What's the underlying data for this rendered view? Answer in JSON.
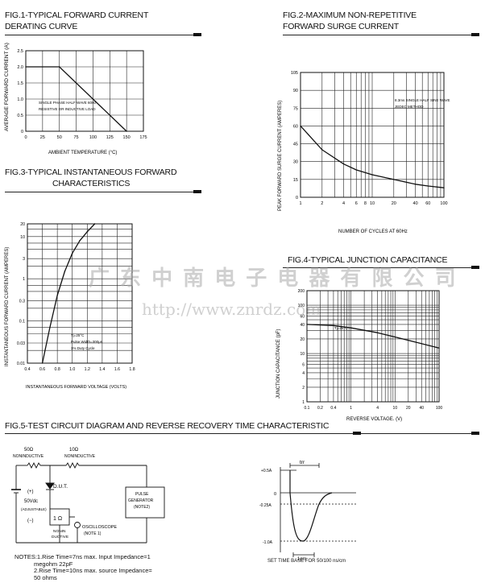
{
  "colors": {
    "ink": "#111111",
    "grid": "#222222",
    "watermark": "#b0b0b0"
  },
  "watermark": {
    "cn": "广 东 中 南 电 子 电 器 有 限 公 司",
    "url": "http://www.znrdz.com"
  },
  "fig1": {
    "title1": "FIG.1-TYPICAL FORWARD CURRENT",
    "title2": "DERATING CURVE",
    "ylabel": "AVERAGE FORWARD CURRENT (A)",
    "xlabel": "AMBIENT TEMPERATURE (°C)",
    "note1": "SINGLE PHASE HALF WAVE 60Hz",
    "note2": "RESISTIVE OR INDUCTIVE LOAD",
    "xticks": [
      "0",
      "25",
      "50",
      "75",
      "100",
      "125",
      "150",
      "175"
    ],
    "yticks": [
      "0",
      "0.5",
      "1.0",
      "1.5",
      "2.0",
      "2.5"
    ],
    "chart_data": {
      "type": "line",
      "x": [
        0,
        50,
        150
      ],
      "y": [
        2.0,
        2.0,
        0
      ],
      "xlim": [
        0,
        175
      ],
      "ylim": [
        0,
        2.5
      ]
    }
  },
  "fig2": {
    "title1": "FIG.2-MAXIMUM NON-REPETITIVE",
    "title2": "FORWARD SURGE CURRENT",
    "ylabel": "PEAK FORWARD SURGE CURRENT (AMPERES)",
    "xlabel": "NUMBER OF CYCLES AT 60Hz",
    "note1": "8.3ms SINGLE HALF SINE WAVE",
    "note2": "JEDEC METHOD",
    "xticks": [
      "1",
      "2",
      "4",
      "6",
      "8",
      "10",
      "20",
      "40",
      "60",
      "100"
    ],
    "yticks": [
      "0",
      "15",
      "30",
      "45",
      "60",
      "75",
      "90",
      "105"
    ],
    "chart_data": {
      "type": "line",
      "xscale": "log",
      "x": [
        1,
        2,
        4,
        6,
        10,
        20,
        40,
        60,
        100
      ],
      "y": [
        60,
        40,
        28,
        23,
        19,
        15,
        11,
        9.5,
        8
      ],
      "xlim": [
        1,
        100
      ],
      "ylim": [
        0,
        105
      ]
    }
  },
  "fig3": {
    "title1": "FIG.3-TYPICAL INSTANTANEOUS FORWARD",
    "title2": "CHARACTERISTICS",
    "ylabel": "INSTANTANEOUS FORWARD CURRENT (AMPERES)",
    "xlabel": "INSTANTANEOUS FORWARD VOLTAGE (VOLTS)",
    "note1": "Tj=25°C",
    "note2": "Pulse Width=300μs",
    "note3": "1% Duty Cycle",
    "xticks": [
      "0.4",
      "0.6",
      "0.8",
      "1.0",
      "1.2",
      "1.4",
      "1.6",
      "1.8"
    ],
    "yticks": [
      "20",
      "10",
      "3",
      "1",
      "0.3",
      "0.1",
      "0.03",
      "0.01"
    ],
    "chart_data": {
      "type": "line",
      "yscale": "log",
      "x": [
        0.6,
        0.7,
        0.8,
        0.9,
        1.0,
        1.1,
        1.2,
        1.3
      ],
      "y": [
        0.01,
        0.07,
        0.4,
        1.5,
        4,
        8,
        13,
        20
      ],
      "xlim": [
        0.4,
        1.8
      ],
      "ylim": [
        0.01,
        20
      ]
    }
  },
  "fig4": {
    "title1": "FIG.4-TYPICAL JUNCTION CAPACITANCE",
    "ylabel": "JUNCTION CAPACITANCE (pF)",
    "xlabel": "REVERSE VOLTAGE. (V)",
    "note1": "Tj=25°C",
    "xticks": [
      "0.1",
      "0.2",
      "0.4",
      "1",
      "4",
      "10",
      "20",
      "40",
      "100"
    ],
    "yticks": [
      "200",
      "100",
      "60",
      "40",
      "20",
      "10",
      "6",
      "4",
      "2",
      "1"
    ],
    "chart_data": {
      "type": "line",
      "xscale": "log",
      "yscale": "log",
      "x": [
        0.1,
        0.4,
        1,
        4,
        10,
        40,
        100
      ],
      "y": [
        40,
        38,
        34,
        27,
        22,
        16,
        13
      ],
      "xlim": [
        0.1,
        100
      ],
      "ylim": [
        1,
        200
      ]
    }
  },
  "fig5": {
    "title": "FIG.5-TEST CIRCUIT DIAGRAM AND REVERSE RECOVERY TIME CHARACTERISTIC",
    "r1": "50Ω",
    "r1_type": "NONINDUCTIVE",
    "r2": "10Ω",
    "r2_type": "NONINDUCTIVE",
    "dut": "D.U.T.",
    "src1": "(+)",
    "src2": "50Vdc",
    "src3": "(ADJUSTABLE)",
    "src4": "(−)",
    "r3": "1 Ω",
    "r3_type1": "NONIN",
    "r3_type2": "DUCTIVE",
    "osc1": "OSCILLOSCOPE",
    "osc2": "(NOTE 1)",
    "gen1": "PULSE",
    "gen2": "GENERATOR",
    "gen3": "(NOTE2)",
    "notes": [
      "NOTES:1.Rise Time=7ns max. Input Impedance=1",
      "megohm 22pF",
      "2.Rise Time=10ns max. source Impedance=",
      "50 ohms"
    ],
    "wave_trr": "trr",
    "wave_p05": "+0.5A",
    "wave_0": "0",
    "wave_m025": "-0.25A",
    "wave_m10": "-1.0A",
    "wave_1cm": "1cm",
    "wave_caption": "SET TIME BASE FOR 50/100 ns/cm"
  }
}
